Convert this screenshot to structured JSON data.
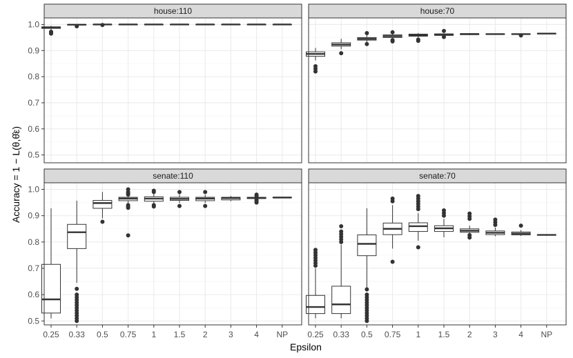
{
  "chart_data": {
    "type": "boxplot",
    "xlabel": "Epsilon",
    "ylabel": "Accuracy = 1 − L(θ,θ̂ε)",
    "categories": [
      "0.25",
      "0.33",
      "0.5",
      "0.75",
      "1",
      "1.5",
      "2",
      "3",
      "4",
      "NP"
    ],
    "y_ticks": [
      "0.5",
      "0.6",
      "0.7",
      "0.8",
      "0.9",
      "1.0"
    ],
    "facets": [
      {
        "label": "house:110",
        "ylim": [
          0.47,
          1.025
        ],
        "boxes": [
          {
            "min": 0.98,
            "q1": 0.985,
            "median": 0.988,
            "q3": 0.991,
            "max": 0.995,
            "outliers": [
              0.972,
              0.968,
              0.965
            ]
          },
          {
            "min": 0.997,
            "q1": 0.998,
            "median": 0.999,
            "q3": 1.0,
            "max": 1.0,
            "outliers": [
              0.993
            ]
          },
          {
            "min": 0.999,
            "q1": 0.9995,
            "median": 1.0,
            "q3": 1.0,
            "max": 1.0,
            "outliers": [
              0.998
            ]
          },
          {
            "min": 1.0,
            "q1": 1.0,
            "median": 1.0,
            "q3": 1.0,
            "max": 1.0,
            "outliers": []
          },
          {
            "min": 1.0,
            "q1": 1.0,
            "median": 1.0,
            "q3": 1.0,
            "max": 1.0,
            "outliers": []
          },
          {
            "min": 1.0,
            "q1": 1.0,
            "median": 1.0,
            "q3": 1.0,
            "max": 1.0,
            "outliers": []
          },
          {
            "min": 1.0,
            "q1": 1.0,
            "median": 1.0,
            "q3": 1.0,
            "max": 1.0,
            "outliers": []
          },
          {
            "min": 1.0,
            "q1": 1.0,
            "median": 1.0,
            "q3": 1.0,
            "max": 1.0,
            "outliers": []
          },
          {
            "min": 1.0,
            "q1": 1.0,
            "median": 1.0,
            "q3": 1.0,
            "max": 1.0,
            "outliers": []
          },
          {
            "min": 1.0,
            "q1": 1.0,
            "median": 1.0,
            "q3": 1.0,
            "max": 1.0,
            "outliers": []
          }
        ]
      },
      {
        "label": "house:70",
        "ylim": [
          0.47,
          1.025
        ],
        "boxes": [
          {
            "min": 0.862,
            "q1": 0.878,
            "median": 0.887,
            "q3": 0.895,
            "max": 0.91,
            "outliers": [
              0.84,
              0.83,
              0.82
            ]
          },
          {
            "min": 0.905,
            "q1": 0.917,
            "median": 0.923,
            "q3": 0.93,
            "max": 0.945,
            "outliers": [
              0.89
            ]
          },
          {
            "min": 0.932,
            "q1": 0.94,
            "median": 0.945,
            "q3": 0.95,
            "max": 0.96,
            "outliers": [
              0.967,
              0.925
            ]
          },
          {
            "min": 0.943,
            "q1": 0.95,
            "median": 0.955,
            "q3": 0.96,
            "max": 0.965,
            "outliers": [
              0.97,
              0.94,
              0.935
            ]
          },
          {
            "min": 0.95,
            "q1": 0.955,
            "median": 0.959,
            "q3": 0.963,
            "max": 0.967,
            "outliers": [
              0.942,
              0.937
            ]
          },
          {
            "min": 0.955,
            "q1": 0.958,
            "median": 0.961,
            "q3": 0.964,
            "max": 0.966,
            "outliers": [
              0.975,
              0.952
            ]
          },
          {
            "min": 0.959,
            "q1": 0.961,
            "median": 0.963,
            "q3": 0.965,
            "max": 0.967,
            "outliers": []
          },
          {
            "min": 0.961,
            "q1": 0.962,
            "median": 0.963,
            "q3": 0.964,
            "max": 0.965,
            "outliers": []
          },
          {
            "min": 0.961,
            "q1": 0.962,
            "median": 0.963,
            "q3": 0.964,
            "max": 0.965,
            "outliers": [
              0.958
            ]
          },
          {
            "min": 0.963,
            "q1": 0.964,
            "median": 0.965,
            "q3": 0.966,
            "max": 0.967,
            "outliers": []
          }
        ]
      },
      {
        "label": "senate:110",
        "ylim": [
          0.485,
          1.025
        ],
        "boxes": [
          {
            "min": 0.51,
            "q1": 0.53,
            "median": 0.582,
            "q3": 0.715,
            "max": 0.928,
            "outliers": []
          },
          {
            "min": 0.645,
            "q1": 0.775,
            "median": 0.837,
            "q3": 0.867,
            "max": 0.957,
            "outliers": [
              0.622,
              0.6,
              0.59,
              0.58,
              0.57,
              0.56,
              0.55,
              0.54,
              0.53,
              0.52,
              0.51,
              0.5
            ]
          },
          {
            "min": 0.89,
            "q1": 0.928,
            "median": 0.948,
            "q3": 0.958,
            "max": 0.99,
            "outliers": [
              0.877
            ]
          },
          {
            "min": 0.945,
            "q1": 0.957,
            "median": 0.965,
            "q3": 0.97,
            "max": 0.99,
            "outliers": [
              1.0,
              0.99,
              0.985,
              0.98,
              0.94,
              0.935,
              0.93,
              0.825
            ]
          },
          {
            "min": 0.945,
            "q1": 0.955,
            "median": 0.965,
            "q3": 0.972,
            "max": 0.99,
            "outliers": [
              0.995,
              0.99,
              0.94,
              0.935
            ]
          },
          {
            "min": 0.948,
            "q1": 0.958,
            "median": 0.964,
            "q3": 0.97,
            "max": 0.982,
            "outliers": [
              0.99,
              0.937
            ]
          },
          {
            "min": 0.948,
            "q1": 0.957,
            "median": 0.965,
            "q3": 0.97,
            "max": 0.98,
            "outliers": [
              0.99,
              0.937
            ]
          },
          {
            "min": 0.955,
            "q1": 0.96,
            "median": 0.967,
            "q3": 0.97,
            "max": 0.975,
            "outliers": []
          },
          {
            "min": 0.962,
            "q1": 0.965,
            "median": 0.968,
            "q3": 0.97,
            "max": 0.972,
            "outliers": [
              0.98,
              0.975,
              0.96,
              0.955,
              0.95
            ]
          },
          {
            "min": 0.968,
            "q1": 0.968,
            "median": 0.969,
            "q3": 0.97,
            "max": 0.97,
            "outliers": []
          }
        ]
      },
      {
        "label": "senate:70",
        "ylim": [
          0.485,
          1.025
        ],
        "boxes": [
          {
            "min": 0.51,
            "q1": 0.528,
            "median": 0.553,
            "q3": 0.597,
            "max": 0.7,
            "outliers": [
              0.77,
              0.76,
              0.75,
              0.74,
              0.73,
              0.72,
              0.71
            ]
          },
          {
            "min": 0.51,
            "q1": 0.528,
            "median": 0.563,
            "q3": 0.632,
            "max": 0.79,
            "outliers": [
              0.86,
              0.84,
              0.83,
              0.82,
              0.81,
              0.8
            ]
          },
          {
            "min": 0.625,
            "q1": 0.748,
            "median": 0.793,
            "q3": 0.827,
            "max": 0.928,
            "outliers": [
              0.62,
              0.6,
              0.59,
              0.58,
              0.57,
              0.56,
              0.55,
              0.54,
              0.53,
              0.52,
              0.51,
              0.5
            ]
          },
          {
            "min": 0.775,
            "q1": 0.828,
            "median": 0.85,
            "q3": 0.872,
            "max": 0.94,
            "outliers": [
              0.965,
              0.955,
              0.725
            ]
          },
          {
            "min": 0.805,
            "q1": 0.84,
            "median": 0.86,
            "q3": 0.873,
            "max": 0.91,
            "outliers": [
              0.975,
              0.965,
              0.955,
              0.945,
              0.935,
              0.925,
              0.78
            ]
          },
          {
            "min": 0.818,
            "q1": 0.84,
            "median": 0.852,
            "q3": 0.862,
            "max": 0.888,
            "outliers": [
              0.92,
              0.91,
              0.9
            ]
          },
          {
            "min": 0.825,
            "q1": 0.837,
            "median": 0.843,
            "q3": 0.85,
            "max": 0.862,
            "outliers": [
              0.908,
              0.898,
              0.888,
              0.826,
              0.817
            ]
          },
          {
            "min": 0.822,
            "q1": 0.828,
            "median": 0.835,
            "q3": 0.842,
            "max": 0.855,
            "outliers": [
              0.885,
              0.875,
              0.865
            ]
          },
          {
            "min": 0.823,
            "q1": 0.827,
            "median": 0.832,
            "q3": 0.838,
            "max": 0.845,
            "outliers": [
              0.862
            ]
          },
          {
            "min": 0.826,
            "q1": 0.826,
            "median": 0.827,
            "q3": 0.828,
            "max": 0.828,
            "outliers": []
          }
        ]
      }
    ]
  }
}
